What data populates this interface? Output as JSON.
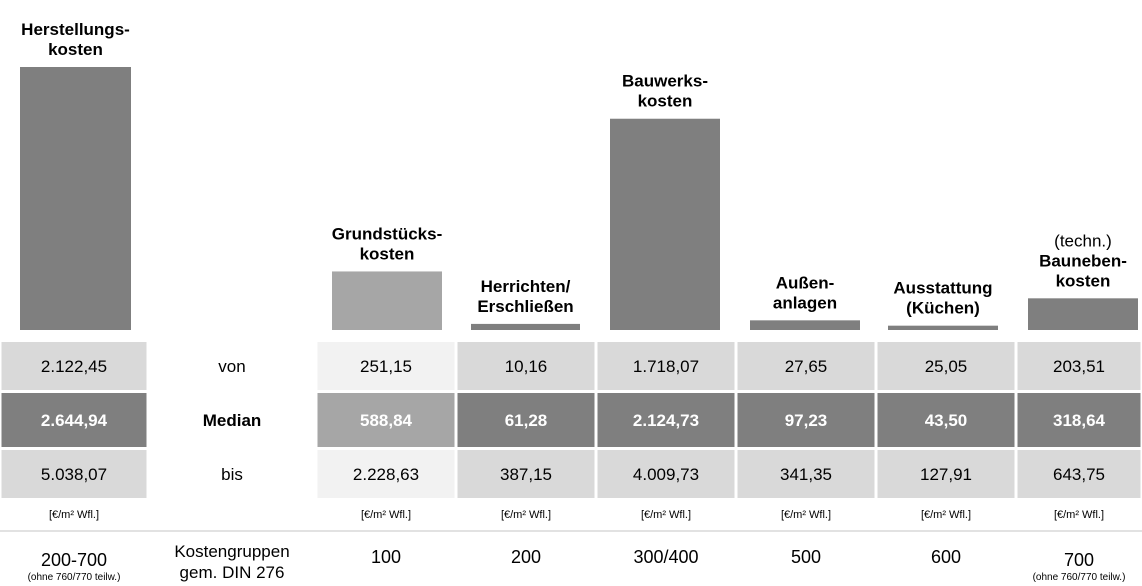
{
  "chart_data": {
    "type": "bar",
    "categories": [
      [
        "Herstellungs-",
        "kosten"
      ],
      [
        "Grundstücks-",
        "kosten"
      ],
      [
        "Herrichten/",
        "Erschließen"
      ],
      [
        "Bauwerks-",
        "kosten"
      ],
      [
        "Außen-",
        "anlagen"
      ],
      [
        "Ausstattung",
        "(Küchen)"
      ],
      [
        "Bauneben-",
        "kosten"
      ]
    ],
    "category_notes": [
      null,
      null,
      null,
      null,
      null,
      null,
      "(techn.)"
    ],
    "colors": [
      "#7f7f7f",
      "#a6a6a6",
      "#7f7f7f",
      "#7f7f7f",
      "#7f7f7f",
      "#7f7f7f",
      "#7f7f7f"
    ],
    "row_labels": [
      "von",
      "Median",
      "bis"
    ],
    "von": [
      "2.122,45",
      "251,15",
      "10,16",
      "1.718,07",
      "27,65",
      "25,05",
      "203,51"
    ],
    "values": [
      2644.94,
      588.84,
      61.28,
      2124.73,
      97.23,
      43.5,
      318.64
    ],
    "value_labels": [
      "2.644,94",
      "588,84",
      "61,28",
      "2.124,73",
      "97,23",
      "43,50",
      "318,64"
    ],
    "bis": [
      "5.038,07",
      "2.228,63",
      "387,15",
      "4.009,73",
      "341,35",
      "127,91",
      "643,75"
    ],
    "unit": "[€/m² Wfl.]",
    "groups": [
      "200-700",
      "100",
      "200",
      "300/400",
      "500",
      "600",
      "700"
    ],
    "group_notes": [
      "(ohne 760/770 teilw.)",
      null,
      null,
      null,
      null,
      null,
      "(ohne 760/770 teilw.)"
    ],
    "group_label": [
      "Kostengruppen",
      "gem. DIN 276"
    ]
  }
}
